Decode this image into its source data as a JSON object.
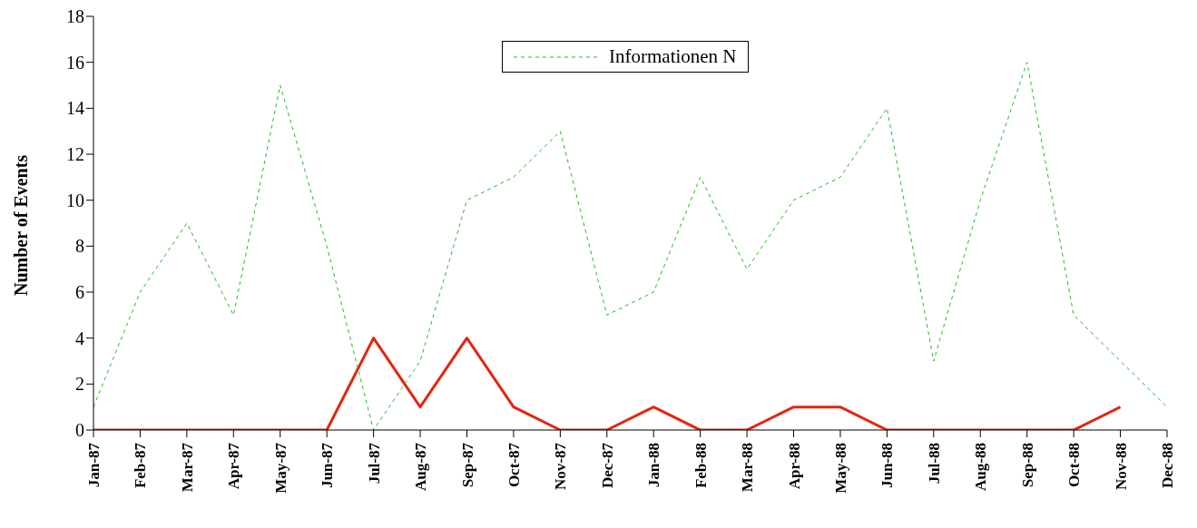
{
  "chart_data": {
    "type": "line",
    "ylabel": "Number of Events",
    "categories": [
      "Jan-87",
      "Feb-87",
      "Mar-87",
      "Apr-87",
      "May-87",
      "Jun-87",
      "Jul-87",
      "Aug-87",
      "Sep-87",
      "Oct-87",
      "Nov-87",
      "Dec-87",
      "Jan-88",
      "Feb-88",
      "Mar-88",
      "Apr-88",
      "May-88",
      "Jun-88",
      "Jul-88",
      "Aug-88",
      "Sep-88",
      "Oct-88",
      "Nov-88",
      "Dec-88"
    ],
    "series": [
      {
        "color": "#e3260f",
        "line_style": "solid",
        "values": [
          0,
          0,
          0,
          0,
          0,
          0,
          4,
          1,
          4,
          1,
          0,
          0,
          1,
          0,
          0,
          1,
          1,
          0,
          0,
          0,
          0,
          0,
          1,
          null
        ]
      },
      {
        "name": "Informationen N",
        "color": "#22bb22",
        "line_style": "dashed",
        "values": [
          1,
          6,
          9,
          5,
          15,
          8,
          0,
          3,
          10,
          11,
          13,
          5,
          6,
          11,
          7,
          10,
          11,
          14,
          3,
          10,
          16,
          5,
          3,
          1
        ]
      }
    ],
    "ylim": [
      0,
      18
    ],
    "yticks": [
      0,
      2,
      4,
      6,
      8,
      10,
      12,
      14,
      16,
      18
    ],
    "grid": false,
    "legend": "top",
    "marker": "none"
  }
}
